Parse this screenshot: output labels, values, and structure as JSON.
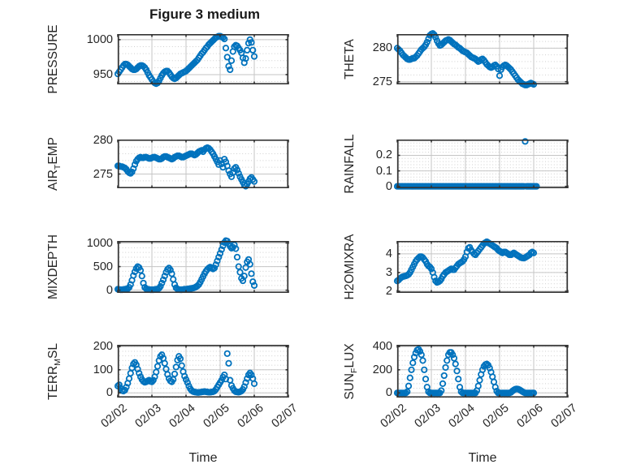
{
  "figure": {
    "title": "Figure 3 medium",
    "xlabel": "Time",
    "marker_color": "#0072BD",
    "frame_color": "#333333",
    "grid_color": "#c6c6c6",
    "minor_grid_color": "#cfcfcf",
    "text_color": "#262626",
    "background": "#ffffff"
  },
  "chart_data": {
    "type": "scatter",
    "marker": "open-circle",
    "x_unit": "hours since 02/02 00:00 (hourly samples)",
    "x_hours_start": 0,
    "x_hours_step": 1,
    "x_axis": {
      "range_hours": [
        0,
        120
      ],
      "tick_hours": [
        0,
        24,
        48,
        72,
        96,
        120
      ],
      "tick_labels": [
        "02/02",
        "02/03",
        "02/04",
        "02/05",
        "02/06",
        "02/07"
      ],
      "label": "Time",
      "tick_label_rotation_deg": 40
    },
    "grid": "major solid + minor dotted",
    "subplots": [
      {
        "id": "pressure",
        "col": 0,
        "row": 0,
        "ylabel_segments": [
          {
            "t": "PRESSURE",
            "sub": false
          }
        ],
        "yticks": [
          950,
          1000
        ],
        "ytick_labels": [
          "950",
          "1000"
        ],
        "ylim": [
          936,
          1008
        ],
        "values": [
          951,
          954,
          957,
          960,
          963,
          965,
          965,
          964,
          962,
          960,
          958,
          957,
          957,
          958,
          960,
          962,
          963,
          963,
          962,
          960,
          957,
          953,
          949,
          946,
          943,
          940,
          938,
          937,
          938,
          941,
          945,
          949,
          952,
          954,
          955,
          955,
          953,
          950,
          947,
          945,
          944,
          945,
          947,
          949,
          951,
          952,
          953,
          954,
          955,
          957,
          959,
          961,
          963,
          965,
          967,
          969,
          971,
          974,
          977,
          980,
          982,
          985,
          988,
          990,
          993,
          995,
          997,
          999,
          1001,
          1003,
          1004,
          1005,
          1005,
          1004,
          1003,
          1001,
          988,
          975,
          962,
          957,
          970,
          983,
          990,
          992,
          991,
          988,
          985,
          981,
          974,
          967,
          973,
          985,
          995,
          1000,
          996,
          985,
          976
        ]
      },
      {
        "id": "theta",
        "col": 1,
        "row": 0,
        "ylabel_segments": [
          {
            "t": "THETA",
            "sub": false
          }
        ],
        "yticks": [
          275,
          280
        ],
        "ytick_labels": [
          "275",
          "280"
        ],
        "ylim": [
          274.6,
          282.1
        ],
        "values": [
          280.0,
          279.8,
          279.6,
          279.3,
          279.0,
          278.8,
          278.6,
          278.4,
          278.3,
          278.3,
          278.4,
          278.5,
          278.5,
          278.7,
          278.9,
          279.2,
          279.5,
          279.8,
          280.0,
          280.2,
          280.5,
          280.9,
          281.4,
          281.9,
          282.1,
          282.2,
          282.0,
          281.6,
          281.1,
          280.7,
          280.4,
          280.5,
          280.7,
          280.9,
          281.1,
          281.2,
          281.3,
          281.2,
          281.0,
          280.8,
          280.6,
          280.5,
          280.3,
          280.1,
          280.0,
          279.8,
          279.6,
          279.5,
          279.4,
          279.3,
          279.1,
          278.9,
          278.7,
          278.6,
          278.5,
          278.4,
          278.2,
          278.0,
          278.1,
          278.3,
          278.4,
          278.2,
          277.9,
          277.6,
          277.4,
          277.2,
          277.1,
          277.2,
          277.4,
          277.5,
          277.3,
          276.9,
          275.9,
          276.8,
          277.2,
          277.4,
          277.5,
          277.4,
          277.2,
          277.0,
          276.8,
          276.5,
          276.2,
          275.9,
          275.6,
          275.3,
          275.1,
          274.9,
          274.7,
          274.6,
          274.5,
          274.5,
          274.6,
          274.7,
          274.8,
          274.7,
          274.6
        ]
      },
      {
        "id": "airtemp",
        "col": 0,
        "row": 1,
        "ylabel_segments": [
          {
            "t": "AIR",
            "sub": false
          },
          {
            "t": "T",
            "sub": true
          },
          {
            "t": "EMP",
            "sub": false
          }
        ],
        "yticks": [
          275,
          280
        ],
        "ytick_labels": [
          "275",
          "280"
        ],
        "ylim": [
          272.9,
          280.1
        ],
        "values": [
          276.2,
          276.2,
          276.1,
          276.1,
          276.0,
          275.9,
          275.7,
          275.4,
          275.2,
          275.1,
          275.3,
          275.8,
          276.4,
          276.9,
          277.2,
          277.4,
          277.5,
          277.4,
          277.4,
          277.5,
          277.5,
          277.4,
          277.3,
          277.3,
          277.4,
          277.5,
          277.5,
          277.4,
          277.3,
          277.2,
          277.2,
          277.3,
          277.5,
          277.6,
          277.6,
          277.5,
          277.4,
          277.3,
          277.2,
          277.3,
          277.5,
          277.6,
          277.7,
          277.7,
          277.6,
          277.5,
          277.5,
          277.6,
          277.7,
          277.8,
          277.9,
          278.0,
          278.0,
          277.9,
          277.8,
          277.9,
          278.1,
          278.3,
          278.4,
          278.5,
          278.3,
          278.6,
          278.8,
          278.9,
          278.8,
          278.6,
          278.3,
          278.0,
          277.6,
          277.2,
          276.8,
          276.4,
          277.0,
          276.5,
          276.0,
          277.2,
          276.8,
          276.2,
          275.5,
          275.0,
          274.6,
          275.2,
          275.8,
          276.0,
          275.6,
          275.1,
          274.6,
          274.2,
          273.8,
          273.4,
          273.2,
          273.5,
          273.9,
          274.3,
          274.5,
          274.2,
          273.9
        ]
      },
      {
        "id": "rainfall",
        "col": 1,
        "row": 1,
        "ylabel_segments": [
          {
            "t": "RAINFALL",
            "sub": false
          }
        ],
        "yticks": [
          0,
          0.1,
          0.2
        ],
        "ytick_labels": [
          "0",
          "0.1",
          "0.2"
        ],
        "ylim": [
          -0.012,
          0.302
        ],
        "values": [
          0,
          0,
          0,
          0,
          0,
          0,
          0,
          0,
          0,
          0,
          0,
          0,
          0,
          0,
          0,
          0,
          0,
          0,
          0,
          0,
          0,
          0,
          0,
          0,
          0,
          0,
          0,
          0,
          0,
          0,
          0,
          0,
          0,
          0,
          0,
          0,
          0,
          0,
          0,
          0,
          0,
          0,
          0,
          0,
          0,
          0,
          0,
          0,
          0,
          0,
          0,
          0,
          0,
          0,
          0,
          0,
          0,
          0,
          0,
          0,
          0,
          0,
          0,
          0,
          0,
          0,
          0,
          0,
          0,
          0,
          0,
          0,
          0,
          0,
          0,
          0,
          0,
          0,
          0,
          0,
          0,
          0,
          0,
          0,
          0,
          0,
          0,
          0,
          0,
          0,
          0.29,
          0,
          0,
          0,
          0,
          0,
          0,
          0,
          0
        ]
      },
      {
        "id": "mixdepth",
        "col": 0,
        "row": 2,
        "ylabel_segments": [
          {
            "t": "MIXDEPTH",
            "sub": false
          }
        ],
        "yticks": [
          0,
          500,
          1000
        ],
        "ytick_labels": [
          "0",
          "500",
          "1000"
        ],
        "ylim": [
          -57,
          1043
        ],
        "values": [
          20,
          15,
          10,
          10,
          15,
          20,
          25,
          30,
          60,
          120,
          210,
          310,
          390,
          460,
          500,
          480,
          420,
          300,
          150,
          60,
          30,
          20,
          15,
          10,
          10,
          10,
          15,
          20,
          25,
          40,
          80,
          150,
          220,
          300,
          380,
          440,
          470,
          430,
          350,
          230,
          120,
          50,
          25,
          15,
          10,
          10,
          15,
          20,
          20,
          25,
          30,
          35,
          40,
          45,
          55,
          70,
          90,
          120,
          170,
          230,
          290,
          350,
          400,
          440,
          470,
          490,
          470,
          450,
          470,
          540,
          620,
          700,
          780,
          860,
          940,
          1010,
          1050,
          1040,
          990,
          930,
          890,
          910,
          960,
          880,
          700,
          500,
          380,
          250,
          200,
          300,
          480,
          600,
          650,
          550,
          350,
          180,
          100
        ]
      },
      {
        "id": "h2omixra",
        "col": 1,
        "row": 2,
        "ylabel_segments": [
          {
            "t": "H2OMIXRA",
            "sub": false
          }
        ],
        "yticks": [
          2,
          3,
          4
        ],
        "ytick_labels": [
          "2",
          "3",
          "4"
        ],
        "ylim": [
          1.91,
          4.69
        ],
        "values": [
          2.55,
          2.6,
          2.68,
          2.74,
          2.78,
          2.8,
          2.82,
          2.85,
          2.9,
          3.0,
          3.15,
          3.3,
          3.45,
          3.6,
          3.7,
          3.78,
          3.85,
          3.85,
          3.8,
          3.7,
          3.6,
          3.45,
          3.35,
          3.3,
          3.2,
          3.0,
          2.75,
          2.55,
          2.47,
          2.5,
          2.55,
          2.65,
          2.8,
          2.9,
          3.0,
          3.05,
          3.1,
          3.15,
          3.2,
          3.15,
          3.15,
          3.25,
          3.35,
          3.45,
          3.5,
          3.55,
          3.6,
          3.7,
          3.85,
          4.1,
          4.3,
          4.35,
          4.2,
          4.1,
          4.0,
          3.95,
          4.05,
          4.15,
          4.25,
          4.35,
          4.45,
          4.55,
          4.6,
          4.65,
          4.6,
          4.55,
          4.5,
          4.45,
          4.4,
          4.35,
          4.3,
          4.2,
          4.15,
          4.1,
          4.05,
          4.1,
          4.1,
          4.05,
          4.0,
          3.95,
          3.95,
          4.0,
          4.05,
          4.0,
          3.95,
          3.9,
          3.85,
          3.8,
          3.78,
          3.77,
          3.8,
          3.85,
          3.9,
          3.95,
          4.05,
          4.1,
          4.05
        ]
      },
      {
        "id": "terrmsl",
        "col": 0,
        "row": 3,
        "ylabel_segments": [
          {
            "t": "TERR",
            "sub": false
          },
          {
            "t": "M",
            "sub": true
          },
          {
            "t": "SL",
            "sub": false
          }
        ],
        "yticks": [
          0,
          100,
          200
        ],
        "ytick_labels": [
          "0",
          "100",
          "200"
        ],
        "ylim": [
          -20,
          208
        ],
        "values": [
          30,
          35,
          20,
          10,
          8,
          12,
          25,
          42,
          62,
          85,
          108,
          125,
          132,
          122,
          103,
          85,
          70,
          58,
          50,
          46,
          48,
          52,
          55,
          50,
          48,
          55,
          70,
          90,
          115,
          140,
          158,
          165,
          150,
          128,
          103,
          80,
          62,
          52,
          48,
          58,
          82,
          112,
          142,
          158,
          148,
          118,
          92,
          72,
          58,
          45,
          30,
          18,
          10,
          6,
          4,
          3,
          2,
          2,
          3,
          4,
          5,
          6,
          5,
          4,
          3,
          3,
          4,
          5,
          8,
          15,
          25,
          35,
          45,
          55,
          68,
          78,
          60,
          170,
          128,
          55,
          32,
          20,
          10,
          5,
          4,
          3,
          5,
          8,
          15,
          27,
          45,
          62,
          78,
          86,
          78,
          62,
          40
        ]
      },
      {
        "id": "sunflux",
        "col": 1,
        "row": 3,
        "ylabel_segments": [
          {
            "t": "SUN",
            "sub": false
          },
          {
            "t": "F",
            "sub": true
          },
          {
            "t": "LUX",
            "sub": false
          }
        ],
        "yticks": [
          0,
          200,
          400
        ],
        "ytick_labels": [
          "0",
          "200",
          "400"
        ],
        "ylim": [
          -40,
          416
        ],
        "values": [
          0,
          0,
          0,
          0,
          0,
          0,
          0,
          10,
          60,
          130,
          200,
          260,
          310,
          345,
          370,
          378,
          360,
          330,
          280,
          200,
          120,
          50,
          10,
          0,
          0,
          0,
          0,
          0,
          0,
          0,
          0,
          20,
          80,
          150,
          220,
          280,
          330,
          350,
          350,
          330,
          300,
          250,
          190,
          120,
          50,
          10,
          0,
          0,
          0,
          0,
          0,
          0,
          0,
          0,
          0,
          0,
          20,
          60,
          110,
          160,
          200,
          230,
          245,
          250,
          240,
          215,
          180,
          140,
          95,
          50,
          15,
          0,
          0,
          0,
          0,
          0,
          0,
          0,
          0,
          0,
          5,
          15,
          25,
          32,
          35,
          33,
          28,
          20,
          12,
          5,
          0,
          0,
          0,
          0,
          0,
          0,
          0
        ]
      }
    ]
  }
}
